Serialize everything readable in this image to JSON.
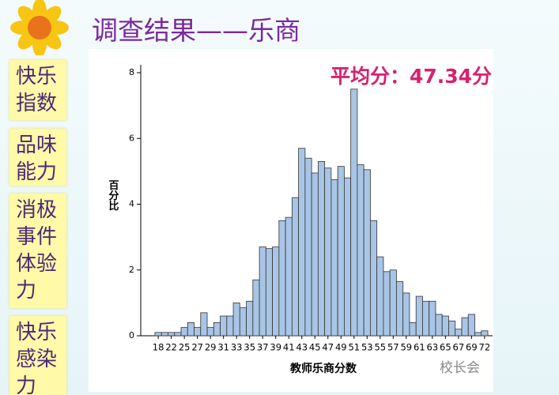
{
  "slide": {
    "title": "调查结果——乐商",
    "side_items": [
      "快乐指数",
      "品味能力",
      "消极事件体验力",
      "快乐感染力"
    ],
    "watermark": "校长会"
  },
  "chart_data": {
    "type": "bar",
    "annotation": "平均分：47.34分",
    "ylabel": "百分比",
    "xlabel": "教师乐商分数",
    "categories": [
      "18",
      null,
      "22",
      null,
      "25",
      null,
      "27",
      null,
      "29",
      null,
      "31",
      null,
      "33",
      null,
      "35",
      null,
      "37",
      null,
      "39",
      null,
      "41",
      null,
      "43",
      null,
      "45",
      null,
      "47",
      null,
      "49",
      null,
      "51",
      null,
      "53",
      null,
      "55",
      null,
      "57",
      null,
      "59",
      null,
      "61",
      null,
      "63",
      null,
      "65",
      null,
      "67",
      null,
      "69",
      null,
      "72"
    ],
    "values": [
      0.1,
      0.1,
      0.1,
      0.1,
      0.25,
      0.4,
      0.25,
      0.7,
      0.25,
      0.4,
      0.6,
      0.6,
      1.0,
      0.85,
      1.05,
      1.7,
      2.7,
      2.65,
      2.7,
      3.5,
      3.6,
      4.2,
      5.7,
      5.4,
      4.95,
      5.3,
      5.1,
      4.75,
      5.15,
      4.8,
      7.5,
      5.2,
      5.05,
      3.5,
      2.4,
      1.95,
      2.0,
      1.65,
      1.3,
      0.4,
      1.2,
      1.05,
      1.05,
      0.65,
      0.6,
      0.45,
      0.2,
      0.55,
      0.65,
      0.1,
      0.15
    ],
    "color": "#a9c5e6",
    "ylim": [
      0,
      8
    ],
    "yticks": [
      0,
      2,
      4,
      6,
      8
    ]
  }
}
